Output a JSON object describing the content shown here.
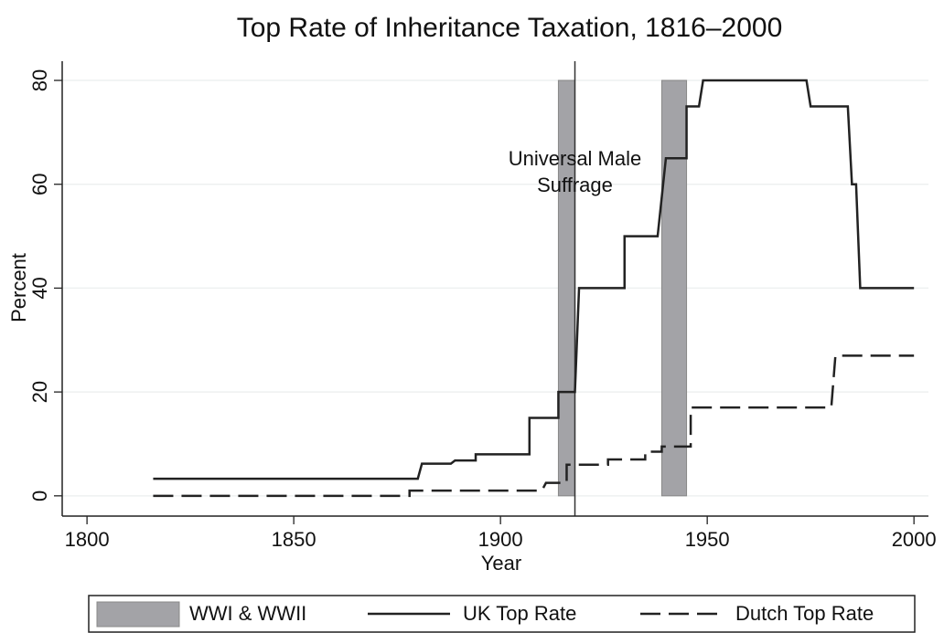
{
  "chart_data": {
    "type": "line",
    "title": "Top Rate of Inheritance Taxation, 1816–2000",
    "x_label": "Year",
    "y_label": "Percent",
    "xlim": [
      1794,
      2003.5
    ],
    "ylim": [
      -3.9,
      83.7
    ],
    "xticks": [
      1800,
      1850,
      1900,
      1950,
      2000
    ],
    "yticks": [
      0,
      20,
      40,
      60,
      80
    ],
    "grid": true,
    "bands": {
      "name": "WWI & WWII",
      "color": "#a3a3a7",
      "ranges": [
        [
          1914,
          1918
        ],
        [
          1939,
          1945
        ]
      ],
      "y": [
        0,
        80
      ]
    },
    "annotation": {
      "x": 1918,
      "lines": [
        "Universal Male",
        "Suffrage"
      ]
    },
    "series": [
      {
        "name": "UK Top Rate",
        "color": "#222222",
        "style": "solid",
        "x": [
          1816,
          1880,
          1881,
          1888,
          1889,
          1894,
          1894,
          1907,
          1907,
          1914,
          1914,
          1918,
          1919,
          1930,
          1930,
          1938,
          1940,
          1945,
          1945,
          1948,
          1949,
          1974,
          1975,
          1984,
          1985,
          1986,
          1987,
          2000
        ],
        "values": [
          3.3,
          3.3,
          6.2,
          6.2,
          6.8,
          6.8,
          8,
          8,
          15,
          15,
          20,
          20,
          40,
          40,
          50,
          50,
          65,
          65,
          75,
          75,
          80,
          80,
          75,
          75,
          60,
          60,
          40,
          40
        ]
      },
      {
        "name": "Dutch Top Rate",
        "color": "#222222",
        "style": "dashed",
        "x": [
          1816,
          1878,
          1878,
          1910,
          1911,
          1916,
          1916,
          1926,
          1926,
          1935,
          1935,
          1939,
          1939,
          1946,
          1946,
          1980,
          1981,
          2000
        ],
        "values": [
          0,
          0,
          1,
          1,
          2.5,
          2.5,
          6,
          6,
          7,
          7,
          8.5,
          8.5,
          9.5,
          9.5,
          17,
          17,
          27,
          27
        ]
      }
    ]
  }
}
